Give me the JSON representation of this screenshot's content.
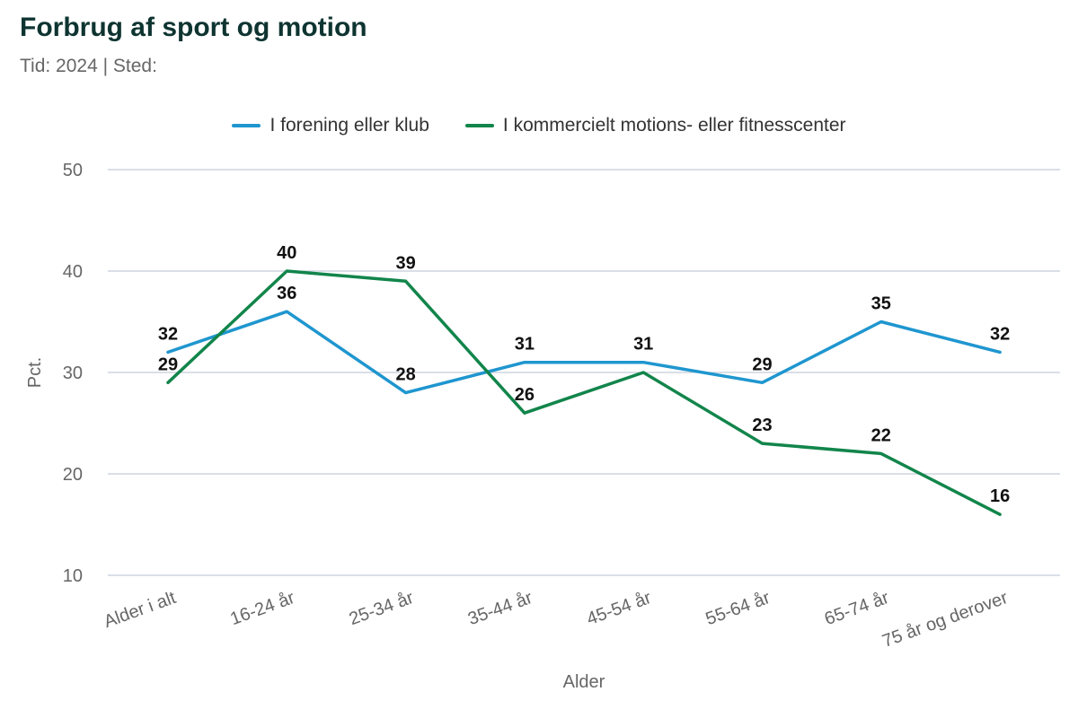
{
  "title": "Forbrug af sport og motion",
  "subtitle": "Tid: 2024 | Sted:",
  "chart_data": {
    "type": "line",
    "title": "Forbrug af sport og motion",
    "xlabel": "Alder",
    "ylabel": "Pct.",
    "ylim": [
      10,
      50
    ],
    "yticks": [
      10,
      20,
      30,
      40,
      50
    ],
    "grid": true,
    "legend_position": "top-center",
    "categories": [
      "Alder i alt",
      "16-24 år",
      "25-34 år",
      "35-44 år",
      "45-54 år",
      "55-64 år",
      "65-74 år",
      "75 år og derover"
    ],
    "series": [
      {
        "name": "I forening eller klub",
        "color": "#1f96cf",
        "values": [
          32,
          36,
          28,
          31,
          31,
          29,
          35,
          32
        ],
        "labels": [
          "32",
          "36",
          "28",
          "31",
          "31",
          "29",
          "35",
          "32"
        ]
      },
      {
        "name": "I kommercielt motions- eller fitnesscenter",
        "color": "#12854b",
        "values": [
          29,
          40,
          39,
          26,
          30,
          23,
          22,
          16
        ],
        "labels": [
          "29",
          "40",
          "39",
          "26",
          "",
          "23",
          "22",
          "16"
        ]
      }
    ]
  }
}
